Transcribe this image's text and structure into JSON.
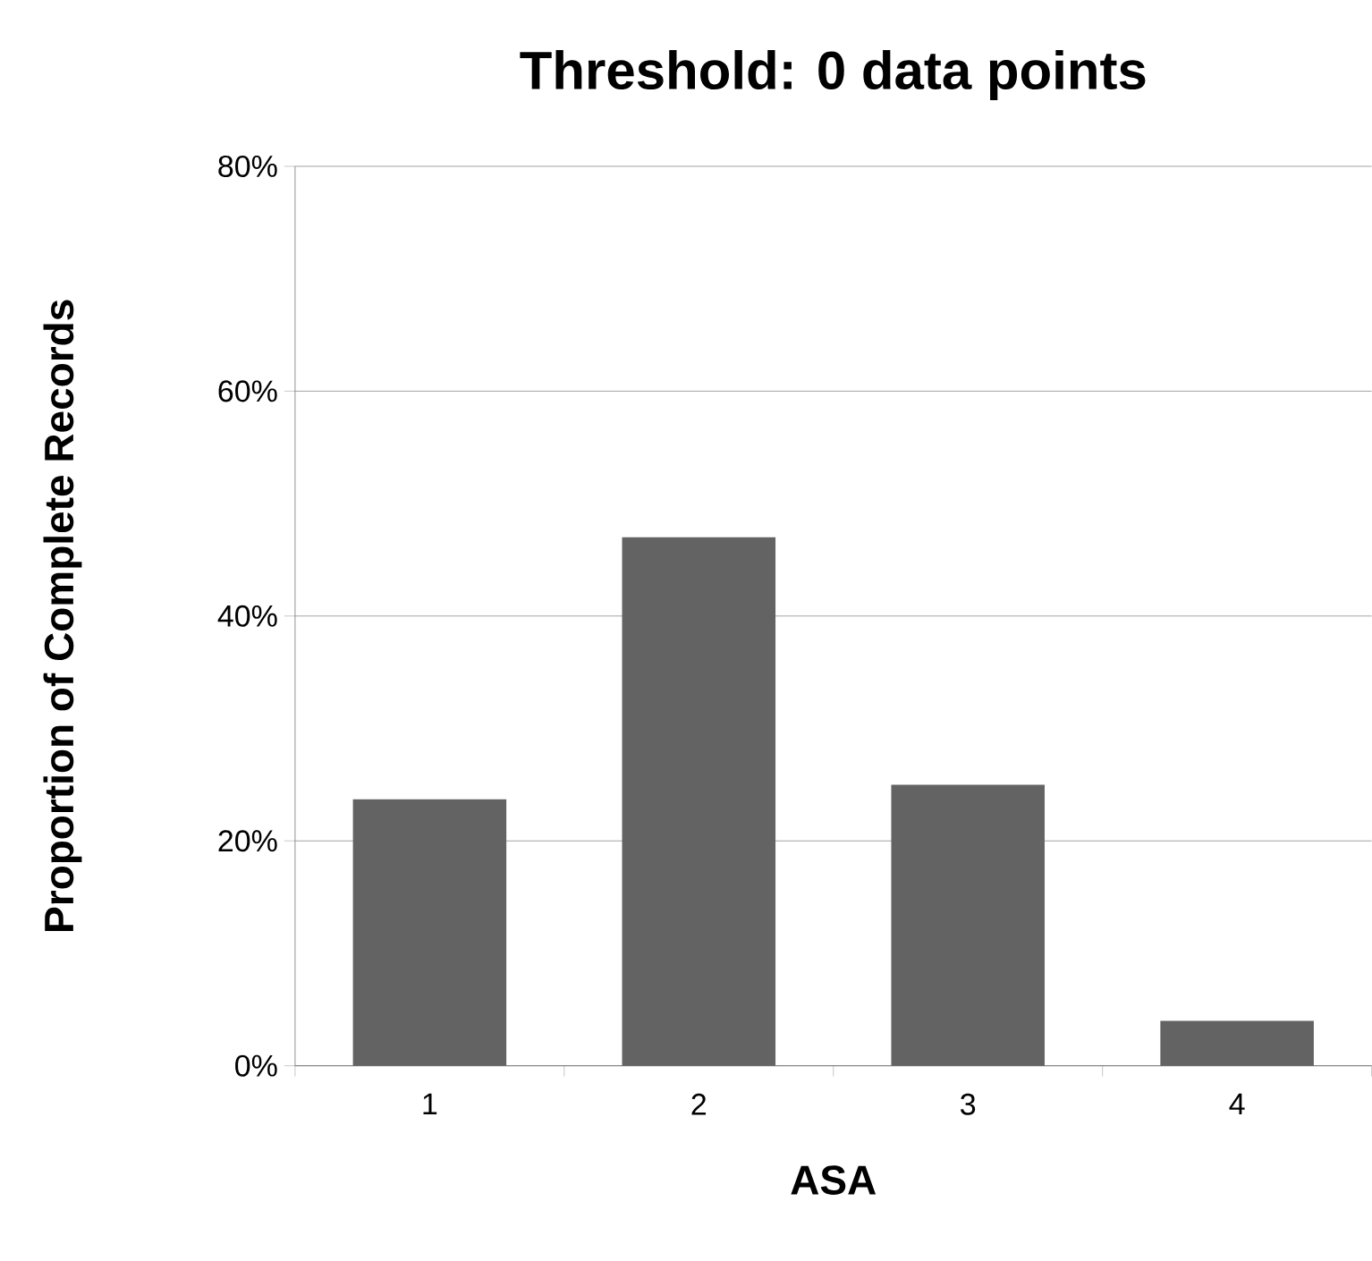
{
  "chart_data": {
    "type": "bar",
    "title": "Threshold: 0 data points",
    "xlabel": "ASA",
    "ylabel": "Proportion of Complete Records",
    "categories": [
      "1",
      "2",
      "3",
      "4"
    ],
    "values": [
      23.7,
      47,
      25,
      4
    ],
    "color": "#636363",
    "ylim": [
      0,
      80
    ],
    "yticks": [
      {
        "value": 0,
        "label": "0%"
      },
      {
        "value": 20,
        "label": "20%"
      },
      {
        "value": 40,
        "label": "40%"
      },
      {
        "value": 60,
        "label": "60%"
      },
      {
        "value": 80,
        "label": "80%"
      }
    ],
    "grid": "y"
  }
}
